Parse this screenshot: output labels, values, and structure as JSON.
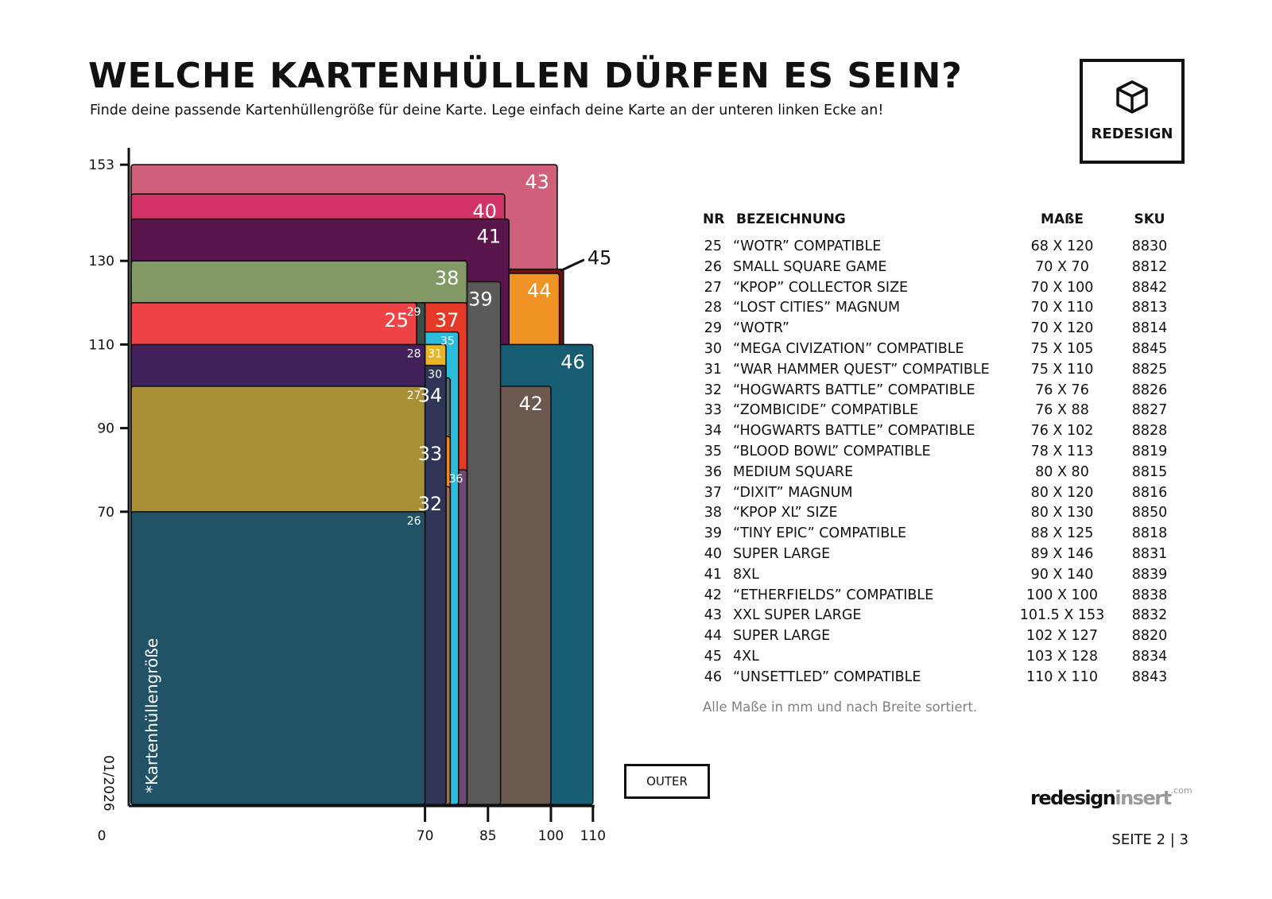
{
  "header": {
    "title": "WELCHE KARTENHÜLLEN DÜRFEN ES SEIN?",
    "subtitle": "Finde deine passende Kartenhüllengröße für deine Karte. Lege einfach deine Karte an der unteren linken Ecke an!"
  },
  "logo": {
    "text": "REDESIGN",
    "icon": "cube-icon"
  },
  "legend": {
    "headers": {
      "nr": "NR",
      "name": "BEZEICHNUNG",
      "size": "MAßE",
      "sku": "SKU"
    },
    "rows": [
      {
        "nr": "25",
        "name": "“WOTR” COMPATIBLE",
        "size": "68 X 120",
        "sku": "8830"
      },
      {
        "nr": "26",
        "name": "SMALL SQUARE GAME",
        "size": "70 X 70",
        "sku": "8812"
      },
      {
        "nr": "27",
        "name": "“KPOP” COLLECTOR SIZE",
        "size": "70 X 100",
        "sku": "8842"
      },
      {
        "nr": "28",
        "name": "“LOST CITIES” MAGNUM",
        "size": "70 X 110",
        "sku": "8813"
      },
      {
        "nr": "29",
        "name": "“WOTR”",
        "size": "70 X 120",
        "sku": "8814"
      },
      {
        "nr": "30",
        "name": "“MEGA CIVIZATION” COMPATIBLE",
        "size": "75 X 105",
        "sku": "8845"
      },
      {
        "nr": "31",
        "name": "“WAR HAMMER QUEST” COMPATIBLE",
        "size": "75 X 110",
        "sku": "8825"
      },
      {
        "nr": "32",
        "name": "“HOGWARTS BATTLE” COMPATIBLE",
        "size": "76 X 76",
        "sku": "8826"
      },
      {
        "nr": "33",
        "name": "“ZOMBICIDE” COMPATIBLE",
        "size": "76 X 88",
        "sku": "8827"
      },
      {
        "nr": "34",
        "name": "“HOGWARTS BATTLE” COMPATIBLE",
        "size": "76 X 102",
        "sku": "8828"
      },
      {
        "nr": "35",
        "name": "“BLOOD BOWL” COMPATIBLE",
        "size": "78 X 113",
        "sku": "8819"
      },
      {
        "nr": "36",
        "name": "MEDIUM SQUARE",
        "size": "80 X 80",
        "sku": "8815"
      },
      {
        "nr": "37",
        "name": "“DIXIT” MAGNUM",
        "size": "80 X 120",
        "sku": "8816"
      },
      {
        "nr": "38",
        "name": "“KPOP XL” SIZE",
        "size": "80 X 130",
        "sku": "8850"
      },
      {
        "nr": "39",
        "name": "“TINY EPIC” COMPATIBLE",
        "size": "88 X 125",
        "sku": "8818"
      },
      {
        "nr": "40",
        "name": "SUPER LARGE",
        "size": "89 X 146",
        "sku": "8831"
      },
      {
        "nr": "41",
        "name": "8XL",
        "size": "90 X 140",
        "sku": "8839"
      },
      {
        "nr": "42",
        "name": "“ETHERFIELDS” COMPATIBLE",
        "size": "100 X 100",
        "sku": "8838"
      },
      {
        "nr": "43",
        "name": "XXL SUPER LARGE",
        "size": "101.5 X 153",
        "sku": "8832"
      },
      {
        "nr": "44",
        "name": "SUPER LARGE",
        "size": "102 X 127",
        "sku": "8820"
      },
      {
        "nr": "45",
        "name": "4XL",
        "size": "103 X 128",
        "sku": "8834"
      },
      {
        "nr": "46",
        "name": "“UNSETTLED” COMPATIBLE",
        "size": "110 X 110",
        "sku": "8843"
      }
    ]
  },
  "note": "Alle Maße in mm und nach Breite sortiert.",
  "outer_button": "OUTER",
  "brand": {
    "main": "redesign",
    "accent": "insert",
    "suffix": ".com"
  },
  "page_number": "SEITE 2 | 3",
  "chart_data": {
    "type": "nested-rectangles",
    "x_ticks": [
      "0",
      "70",
      "85",
      "100",
      "110"
    ],
    "y_ticks": [
      "153",
      "130",
      "110",
      "90",
      "70"
    ],
    "vertical_label": "*Kartenhüllengröße",
    "date_label": "01/2026",
    "sleeves": [
      {
        "nr": "43",
        "w": 101.5,
        "h": 153,
        "color": "#d0607a",
        "label_color": "#ffffff"
      },
      {
        "nr": "40",
        "w": 89,
        "h": 146,
        "color": "#d23467",
        "label_color": "#ffffff"
      },
      {
        "nr": "45",
        "w": 103,
        "h": 128,
        "color": "#6e0f14",
        "label_color": "#111111"
      },
      {
        "nr": "44",
        "w": 102,
        "h": 127,
        "color": "#ef9325",
        "label_color": "#ffffff"
      },
      {
        "nr": "41",
        "w": 90,
        "h": 140,
        "color": "#5a154d",
        "label_color": "#ffffff"
      },
      {
        "nr": "46",
        "w": 110,
        "h": 110,
        "color": "#165c72",
        "label_color": "#ffffff"
      },
      {
        "nr": "42",
        "w": 100,
        "h": 100,
        "color": "#6b584e",
        "label_color": "#ffffff"
      },
      {
        "nr": "39",
        "w": 88,
        "h": 125,
        "color": "#595959",
        "label_color": "#ffffff"
      },
      {
        "nr": "38",
        "w": 80,
        "h": 130,
        "color": "#829966",
        "label_color": "#ffffff"
      },
      {
        "nr": "37",
        "w": 80,
        "h": 120,
        "color": "#e63a29",
        "label_color": "#ffffff"
      },
      {
        "nr": "36",
        "w": 80,
        "h": 80,
        "color": "#6c4a73",
        "label_color": "#ffffff"
      },
      {
        "nr": "35",
        "w": 78,
        "h": 113,
        "color": "#2bbcdc",
        "label_color": "#ffffff"
      },
      {
        "nr": "34",
        "w": 76,
        "h": 102,
        "color": "#4f6b6e",
        "label_color": "#ffffff"
      },
      {
        "nr": "33",
        "w": 76,
        "h": 88,
        "color": "#e8892a",
        "label_color": "#ffffff"
      },
      {
        "nr": "32",
        "w": 76,
        "h": 76,
        "color": "#9b6f58",
        "label_color": "#ffffff"
      },
      {
        "nr": "31",
        "w": 75,
        "h": 110,
        "color": "#e9b528",
        "label_color": "#ffffff"
      },
      {
        "nr": "30",
        "w": 75,
        "h": 105,
        "color": "#2f3557",
        "label_color": "#ffffff"
      },
      {
        "nr": "29",
        "w": 70,
        "h": 120,
        "color": "#3b4e44",
        "label_color": "#ffffff"
      },
      {
        "nr": "25",
        "w": 68,
        "h": 120,
        "color": "#ee4448",
        "label_color": "#ffffff"
      },
      {
        "nr": "28",
        "w": 70,
        "h": 110,
        "color": "#43215c",
        "label_color": "#ffffff"
      },
      {
        "nr": "27",
        "w": 70,
        "h": 100,
        "color": "#a98f35",
        "label_color": "#ffffff"
      },
      {
        "nr": "26",
        "w": 70,
        "h": 70,
        "color": "#215266",
        "label_color": "#ffffff"
      }
    ]
  }
}
